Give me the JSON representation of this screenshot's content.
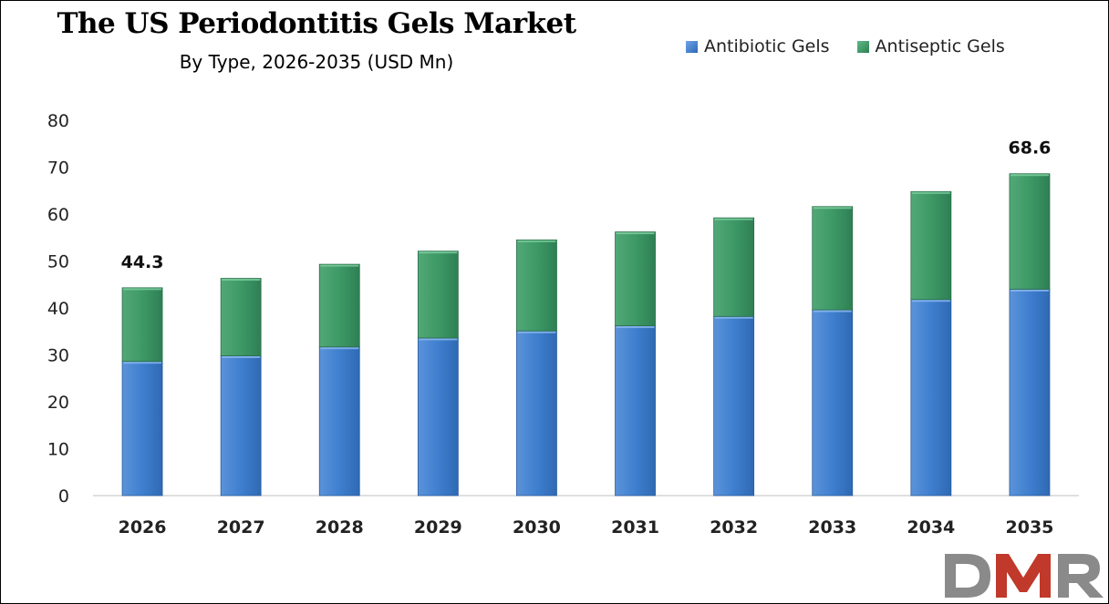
{
  "chart_data": {
    "type": "bar",
    "stacked": true,
    "title": "The US Periodontitis Gels Market",
    "subtitle": "By Type, 2026-2035 (USD Mn)",
    "categories": [
      "2026",
      "2027",
      "2028",
      "2029",
      "2030",
      "2031",
      "2032",
      "2033",
      "2034",
      "2035"
    ],
    "series": [
      {
        "name": "Antibiotic Gels",
        "color": "#3f7fcf",
        "values": [
          28.6,
          29.8,
          31.7,
          33.6,
          35.1,
          36.2,
          38.2,
          39.6,
          41.8,
          44.0
        ]
      },
      {
        "name": "Antiseptic Gels",
        "color": "#3d9966",
        "values": [
          15.7,
          16.5,
          17.6,
          18.5,
          19.4,
          20.0,
          21.0,
          22.0,
          23.0,
          24.6
        ]
      }
    ],
    "yticks": [
      "0",
      "10",
      "20",
      "30",
      "40",
      "50",
      "60",
      "70",
      "80"
    ],
    "ylim": [
      0,
      80
    ],
    "grid": false,
    "legend_position": "top-right",
    "annotations": [
      {
        "category": "2026",
        "label": "44.3",
        "value": 44.3
      },
      {
        "category": "2035",
        "label": "68.6",
        "value": 68.6
      }
    ]
  },
  "logo": {
    "text": "DMR",
    "colors": [
      "#8a8a8a",
      "#c0392b"
    ]
  }
}
